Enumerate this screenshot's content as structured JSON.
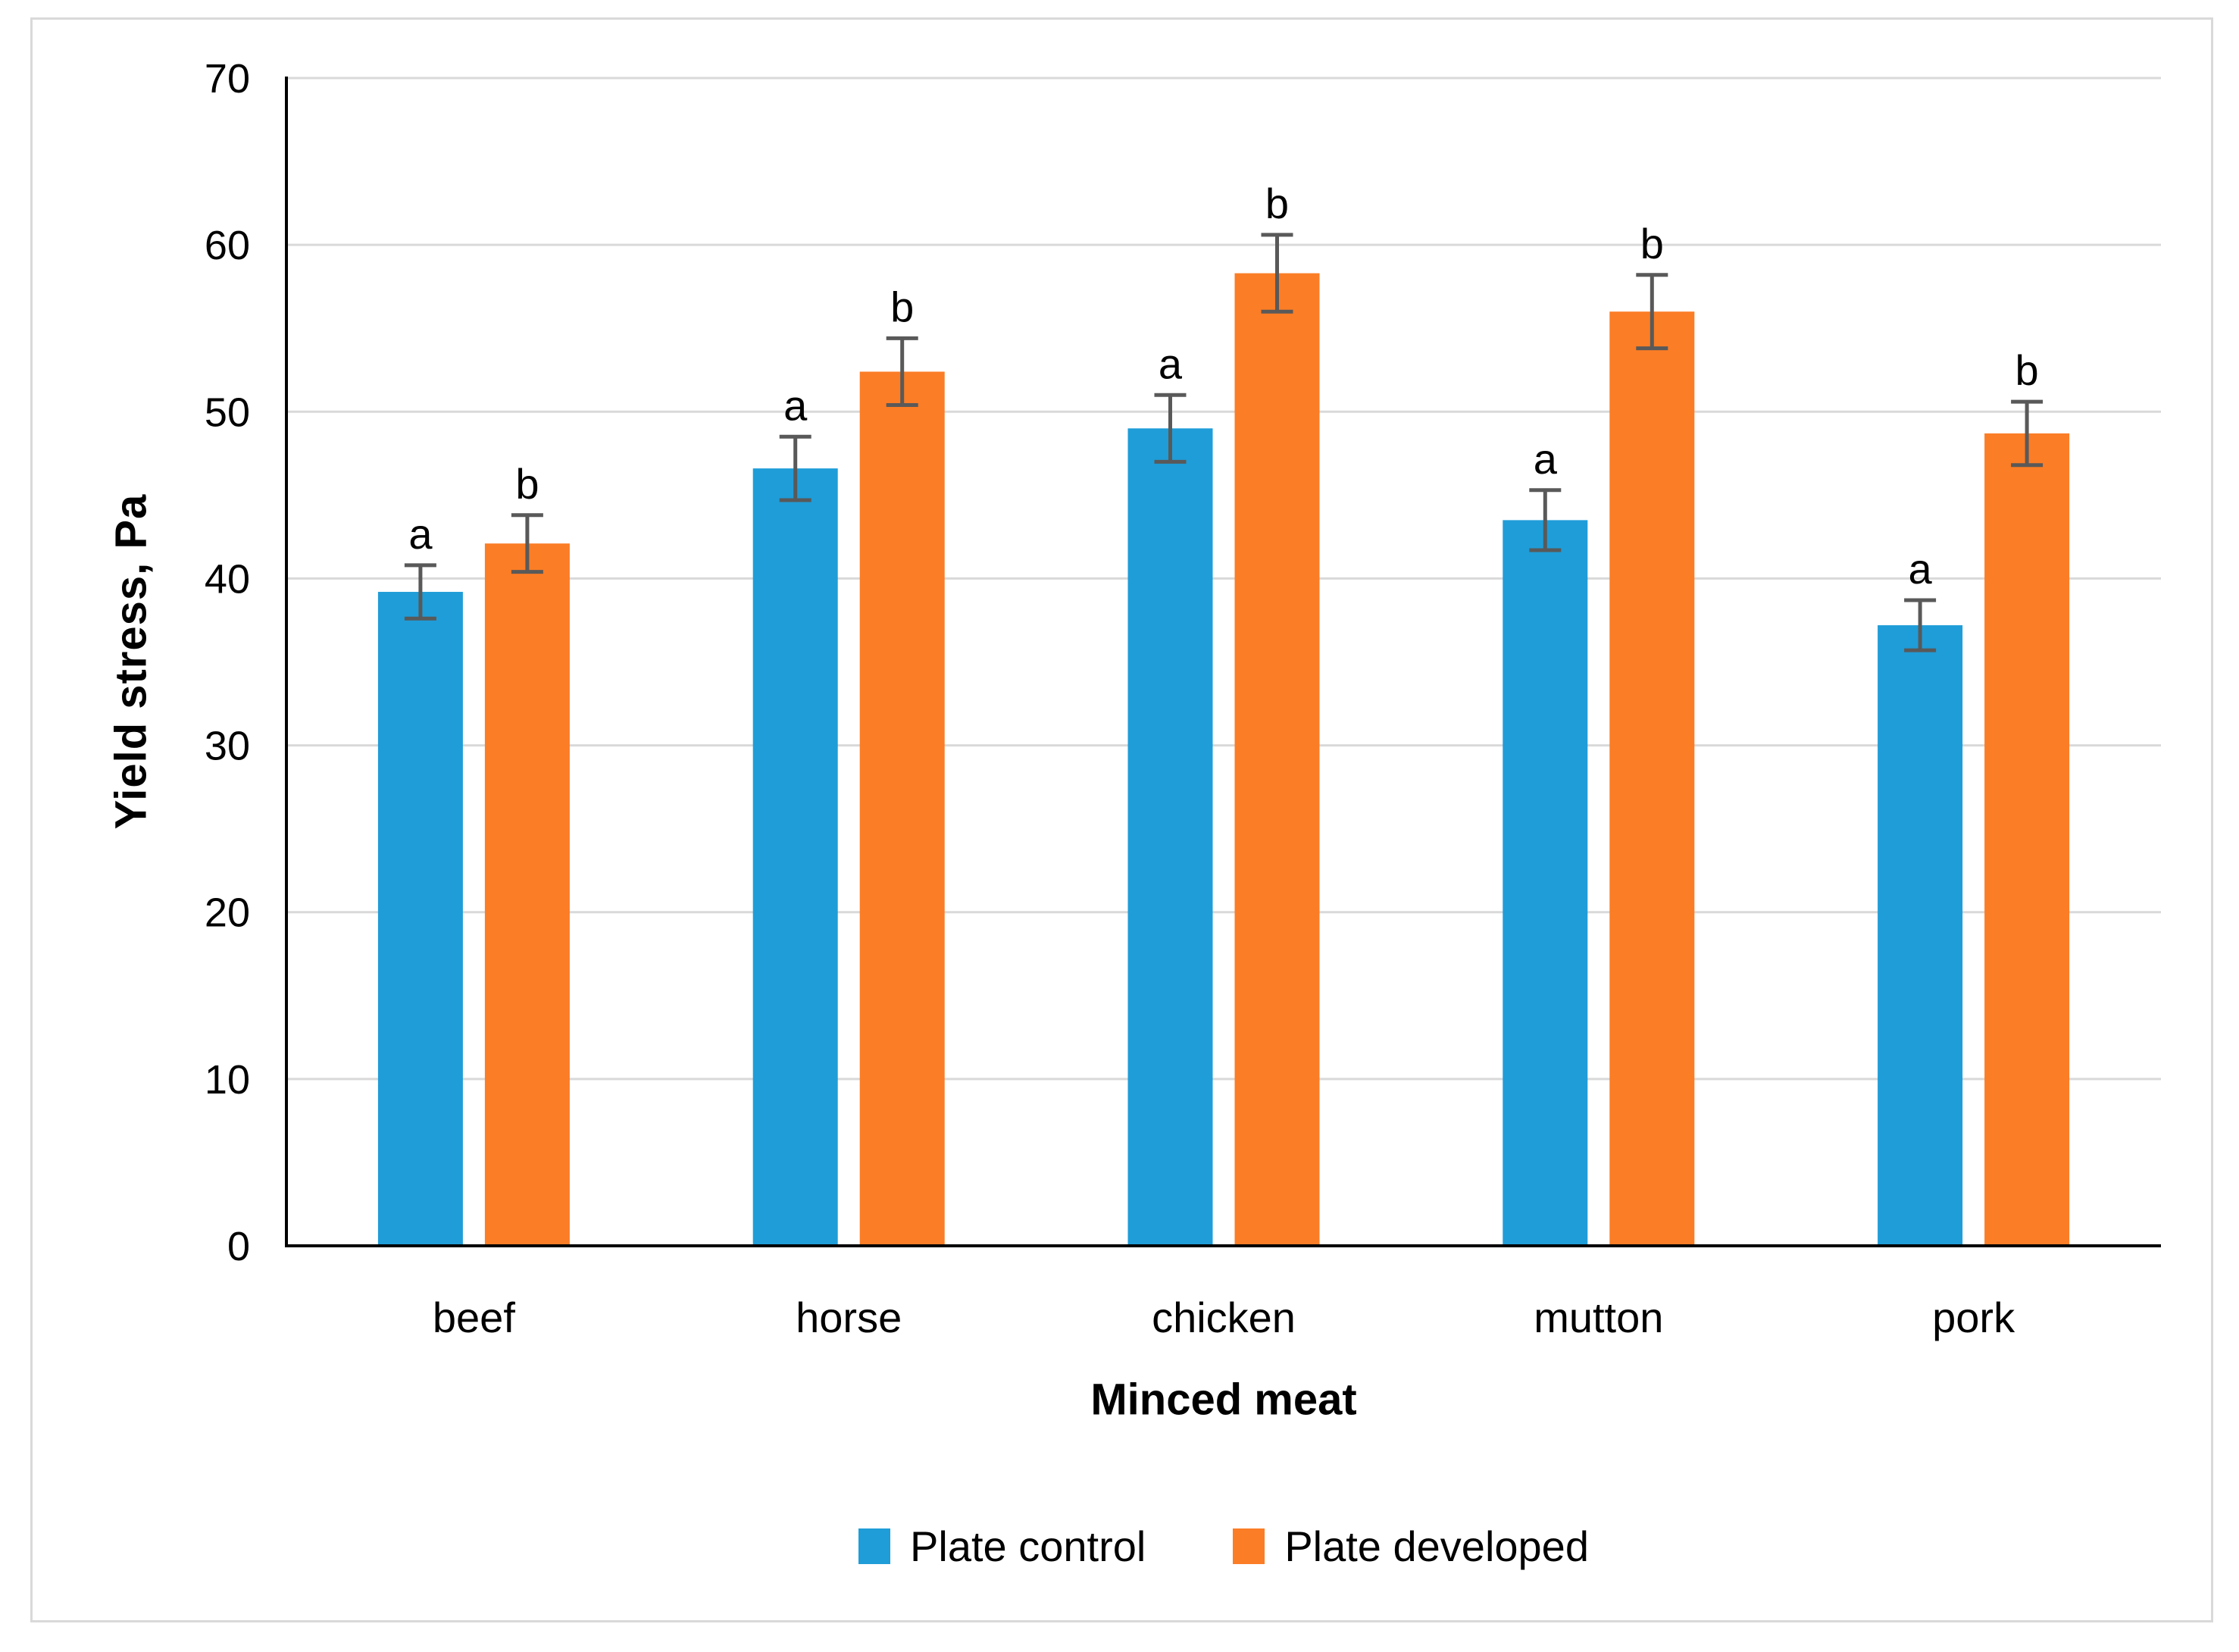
{
  "chart_data": {
    "type": "bar",
    "title": "",
    "xlabel": "Minced meat",
    "ylabel": "Yield stress, Pa",
    "categories": [
      "beef",
      "horse",
      "chicken",
      "mutton",
      "pork"
    ],
    "series": [
      {
        "name": "Plate control",
        "color": "#1F9DD8",
        "values": [
          39.2,
          46.6,
          49.0,
          43.5,
          37.2
        ],
        "errors": [
          1.6,
          1.9,
          2.0,
          1.8,
          1.5
        ],
        "letters": [
          "a",
          "a",
          "a",
          "a",
          "a"
        ]
      },
      {
        "name": "Plate developed",
        "color": "#FB7D26",
        "values": [
          42.1,
          52.4,
          58.3,
          56.0,
          48.7
        ],
        "errors": [
          1.7,
          2.0,
          2.3,
          2.2,
          1.9
        ],
        "letters": [
          "b",
          "b",
          "b",
          "b",
          "b"
        ]
      }
    ],
    "ylim": [
      0,
      70
    ],
    "ytick_step": 10,
    "yticks": [
      0,
      10,
      20,
      30,
      40,
      50,
      60,
      70
    ],
    "grid": true,
    "legend_position": "bottom",
    "gridline_color": "#D9D9D9",
    "axis_color": "#000000",
    "error_bar_color": "#595959",
    "text_color": "#000000",
    "frame_border_color": "#D9D9D9"
  }
}
